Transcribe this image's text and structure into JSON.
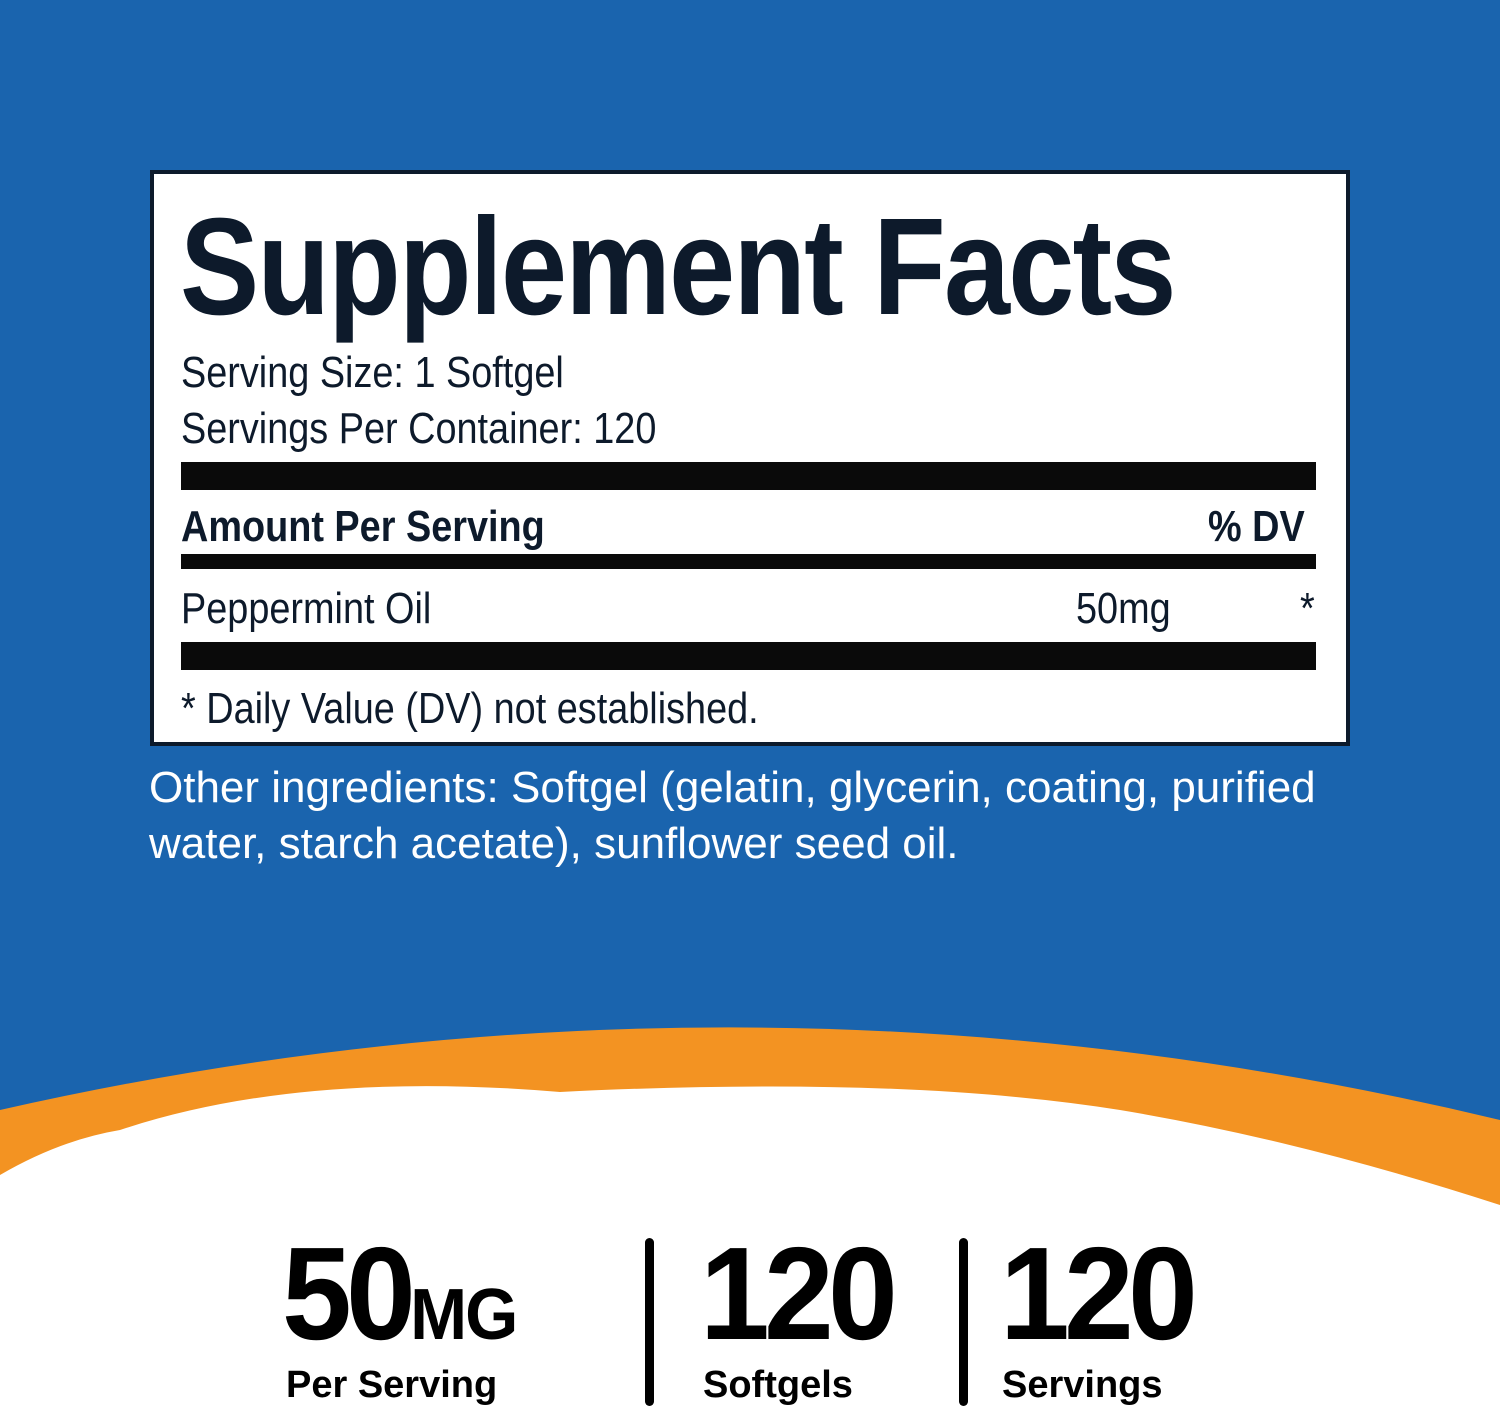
{
  "colors": {
    "background": "#1a64ae",
    "accent_band": "#f39322",
    "label_border": "#0d1a2b"
  },
  "label": {
    "title": "Supplement Facts",
    "serving_size": "Serving Size: 1 Softgel",
    "servings_per_container": "Servings Per Container: 120",
    "header_amount": "Amount Per Serving",
    "header_dv": "% DV",
    "ingredients": [
      {
        "name": "Peppermint Oil",
        "amount": "50mg",
        "dv": "*"
      }
    ],
    "footnote": "* Daily Value (DV) not established."
  },
  "other_ingredients": "Other ingredients: Softgel (gelatin, glycerin, coating, purified water, starch acetate), sunflower seed oil.",
  "stats": [
    {
      "value": "50",
      "unit": "MG",
      "label": "Per Serving"
    },
    {
      "value": "120",
      "label": "Softgels"
    },
    {
      "value": "120",
      "label": "Servings"
    }
  ]
}
